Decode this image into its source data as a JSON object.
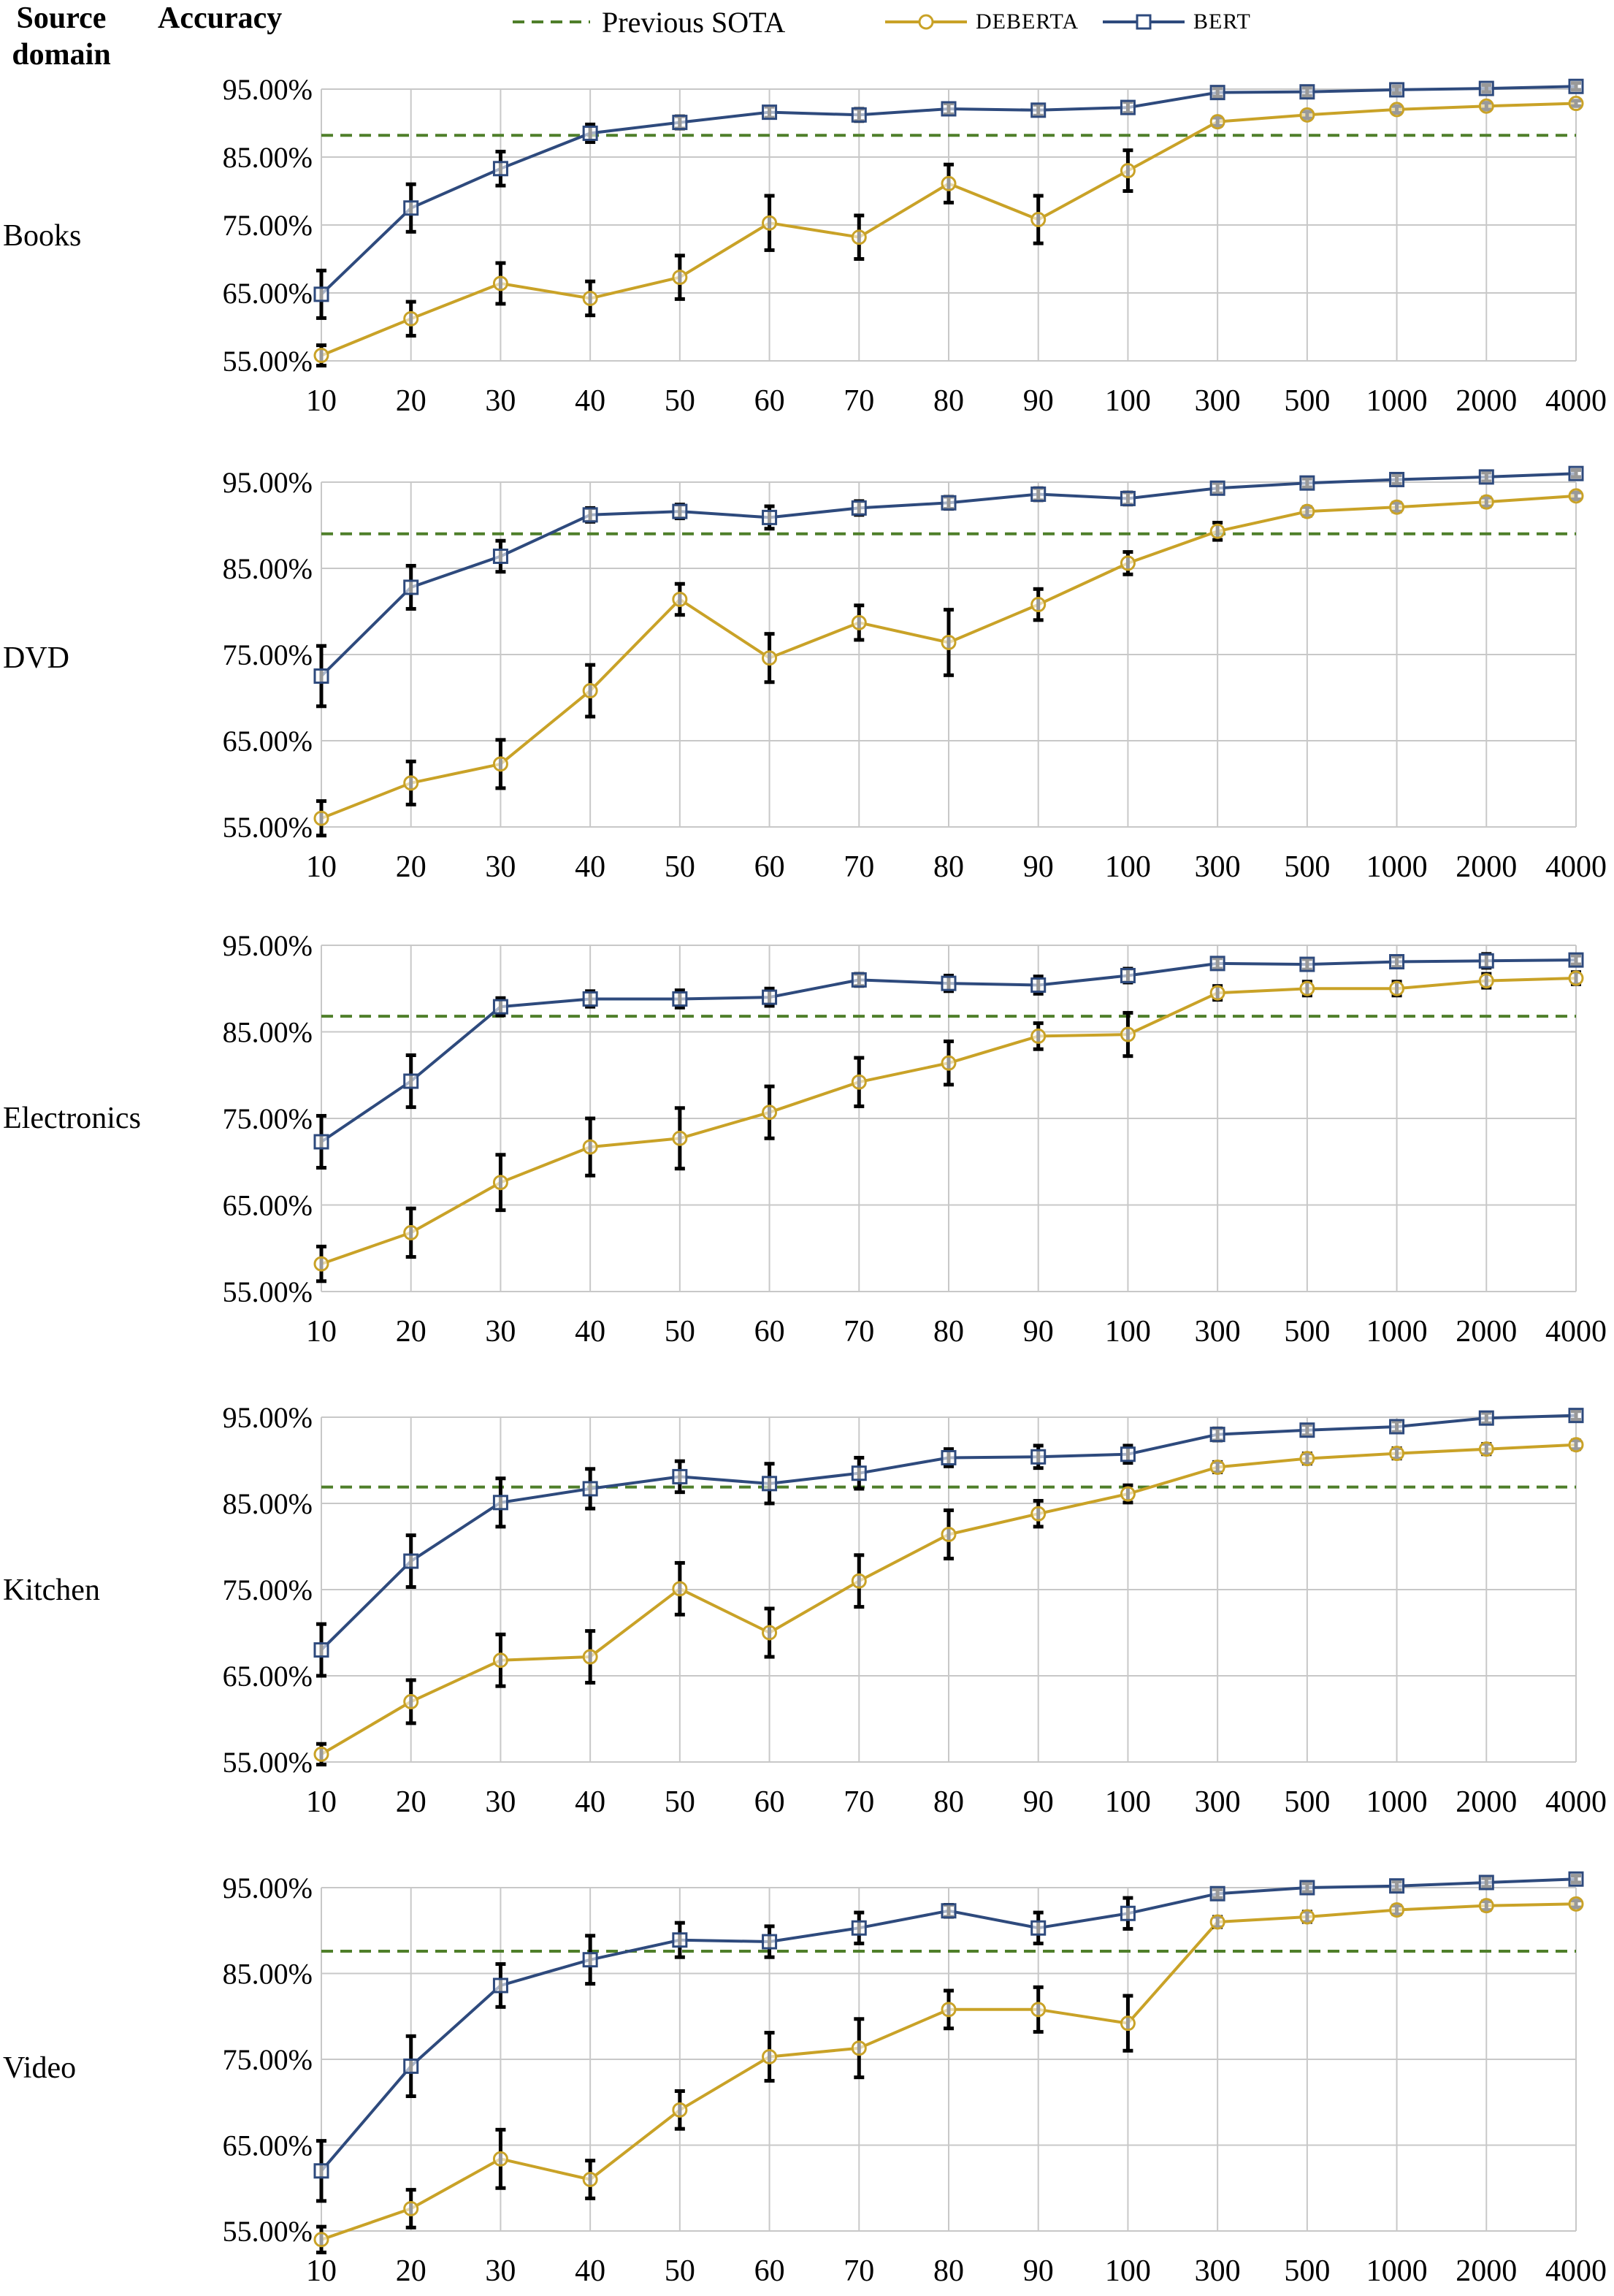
{
  "header": {
    "source_domain_line1": "Source",
    "source_domain_line2": "domain",
    "accuracy": "Accuracy"
  },
  "legend": {
    "previous_sota": "Previous SOTA",
    "deberta": "DEBERTA",
    "bert": "BERT"
  },
  "colors": {
    "bert": "#2e4a7d",
    "deberta": "#c9a227",
    "sota": "#4f7f2a",
    "grid": "#c8c8c8",
    "error_bar": "#000000"
  },
  "chart_data": [
    {
      "type": "line",
      "panel_label": "Books",
      "categories": [
        "10",
        "20",
        "30",
        "40",
        "50",
        "60",
        "70",
        "80",
        "90",
        "100",
        "300",
        "500",
        "1000",
        "2000",
        "4000"
      ],
      "y_ticks": [
        "55.00%",
        "65.00%",
        "75.00%",
        "85.00%",
        "95.00%"
      ],
      "ylim": [
        55,
        95
      ],
      "previous_sota": 88.2,
      "series": [
        {
          "name": "BERT",
          "values": [
            64.8,
            77.5,
            83.3,
            88.5,
            90.1,
            91.6,
            91.2,
            92.1,
            91.9,
            92.3,
            94.5,
            94.6,
            94.9,
            95.1,
            95.4
          ],
          "errors": [
            3.5,
            3.5,
            2.5,
            1.3,
            0.9,
            0.8,
            0.9,
            0.8,
            0.8,
            0.8,
            0.6,
            0.6,
            0.5,
            0.5,
            0.5
          ]
        },
        {
          "name": "DEBERTA",
          "values": [
            55.8,
            61.2,
            66.4,
            64.2,
            67.3,
            75.3,
            73.2,
            81.1,
            75.8,
            83.0,
            90.2,
            91.2,
            92.0,
            92.5,
            92.9
          ],
          "errors": [
            1.5,
            2.5,
            3.0,
            2.5,
            3.2,
            4.0,
            3.2,
            2.8,
            3.5,
            3.0,
            0.6,
            0.5,
            0.5,
            0.5,
            0.4
          ]
        }
      ]
    },
    {
      "type": "line",
      "panel_label": "DVD",
      "categories": [
        "10",
        "20",
        "30",
        "40",
        "50",
        "60",
        "70",
        "80",
        "90",
        "100",
        "300",
        "500",
        "1000",
        "2000",
        "4000"
      ],
      "y_ticks": [
        "55.00%",
        "65.00%",
        "75.00%",
        "85.00%",
        "95.00%"
      ],
      "ylim": [
        55,
        95
      ],
      "previous_sota": 89.0,
      "series": [
        {
          "name": "BERT",
          "values": [
            72.5,
            82.8,
            86.4,
            91.2,
            91.6,
            90.9,
            92.0,
            92.6,
            93.6,
            93.1,
            94.3,
            94.9,
            95.3,
            95.6,
            96.0
          ],
          "errors": [
            3.5,
            2.5,
            1.8,
            0.8,
            0.8,
            1.3,
            0.8,
            0.7,
            0.7,
            0.7,
            0.6,
            0.5,
            0.5,
            0.5,
            0.4
          ]
        },
        {
          "name": "DEBERTA",
          "values": [
            56.0,
            60.1,
            62.3,
            70.8,
            81.4,
            74.6,
            78.7,
            76.4,
            80.8,
            85.6,
            89.3,
            91.6,
            92.1,
            92.7,
            93.4
          ],
          "errors": [
            2.0,
            2.5,
            2.8,
            3.0,
            1.8,
            2.8,
            2.0,
            3.8,
            1.8,
            1.3,
            1.0,
            0.5,
            0.5,
            0.5,
            0.4
          ]
        }
      ]
    },
    {
      "type": "line",
      "panel_label": "Electronics",
      "categories": [
        "10",
        "20",
        "30",
        "40",
        "50",
        "60",
        "70",
        "80",
        "90",
        "100",
        "300",
        "500",
        "1000",
        "2000",
        "4000"
      ],
      "y_ticks": [
        "55.00%",
        "65.00%",
        "75.00%",
        "85.00%",
        "95.00%"
      ],
      "ylim": [
        55,
        95
      ],
      "previous_sota": 86.8,
      "series": [
        {
          "name": "BERT",
          "values": [
            72.3,
            79.3,
            87.9,
            88.8,
            88.8,
            89.0,
            91.0,
            90.6,
            90.4,
            91.5,
            92.9,
            92.8,
            93.1,
            93.2,
            93.3
          ],
          "errors": [
            3.0,
            3.0,
            1.0,
            0.9,
            1.0,
            1.0,
            0.7,
            0.9,
            1.0,
            0.8,
            0.6,
            0.6,
            0.6,
            0.8,
            0.5
          ]
        },
        {
          "name": "DEBERTA",
          "values": [
            58.2,
            61.8,
            67.6,
            71.7,
            72.7,
            75.7,
            79.2,
            81.4,
            84.5,
            84.7,
            89.5,
            90.0,
            90.0,
            90.9,
            91.2
          ],
          "errors": [
            2.0,
            2.8,
            3.2,
            3.3,
            3.5,
            3.0,
            2.8,
            2.5,
            1.5,
            2.5,
            0.8,
            0.8,
            0.8,
            0.8,
            0.7
          ]
        }
      ]
    },
    {
      "type": "line",
      "panel_label": "Kitchen",
      "categories": [
        "10",
        "20",
        "30",
        "40",
        "50",
        "60",
        "70",
        "80",
        "90",
        "100",
        "300",
        "500",
        "1000",
        "2000",
        "4000"
      ],
      "y_ticks": [
        "55.00%",
        "65.00%",
        "75.00%",
        "85.00%",
        "95.00%"
      ],
      "ylim": [
        55,
        95
      ],
      "previous_sota": 86.9,
      "series": [
        {
          "name": "BERT",
          "values": [
            68.0,
            78.3,
            85.1,
            86.7,
            88.1,
            87.3,
            88.5,
            90.3,
            90.4,
            90.7,
            93.0,
            93.5,
            93.9,
            94.9,
            95.2
          ],
          "errors": [
            3.0,
            3.0,
            2.8,
            2.3,
            1.8,
            2.3,
            1.8,
            1.0,
            1.3,
            1.0,
            0.7,
            0.6,
            0.6,
            0.6,
            0.5
          ]
        },
        {
          "name": "DEBERTA",
          "values": [
            55.9,
            62.0,
            66.8,
            67.2,
            75.1,
            70.0,
            76.0,
            81.4,
            83.8,
            86.1,
            89.2,
            90.2,
            90.8,
            91.3,
            91.8
          ],
          "errors": [
            1.2,
            2.5,
            3.0,
            3.0,
            3.0,
            2.8,
            3.0,
            2.8,
            1.5,
            1.0,
            0.6,
            0.6,
            0.6,
            0.6,
            0.5
          ]
        }
      ]
    },
    {
      "type": "line",
      "panel_label": "Video",
      "categories": [
        "10",
        "20",
        "30",
        "40",
        "50",
        "60",
        "70",
        "80",
        "90",
        "100",
        "300",
        "500",
        "1000",
        "2000",
        "4000"
      ],
      "y_ticks": [
        "55.00%",
        "65.00%",
        "75.00%",
        "85.00%",
        "95.00%"
      ],
      "ylim": [
        55,
        95
      ],
      "previous_sota": 87.6,
      "series": [
        {
          "name": "BERT",
          "values": [
            62.0,
            74.2,
            83.6,
            86.6,
            88.9,
            88.7,
            90.3,
            92.3,
            90.3,
            92.0,
            94.3,
            95.0,
            95.2,
            95.6,
            96.0
          ],
          "errors": [
            3.5,
            3.5,
            2.5,
            2.8,
            2.0,
            1.8,
            1.8,
            0.7,
            1.8,
            1.8,
            0.5,
            0.5,
            0.5,
            0.5,
            0.4
          ]
        },
        {
          "name": "DEBERTA",
          "values": [
            54.0,
            57.6,
            63.4,
            61.0,
            69.1,
            75.3,
            76.3,
            80.8,
            80.8,
            79.2,
            91.0,
            91.6,
            92.4,
            92.9,
            93.1
          ],
          "errors": [
            1.5,
            2.2,
            3.4,
            2.2,
            2.2,
            2.8,
            3.4,
            2.2,
            2.6,
            3.2,
            0.6,
            0.6,
            0.5,
            0.5,
            0.4
          ]
        }
      ]
    }
  ]
}
